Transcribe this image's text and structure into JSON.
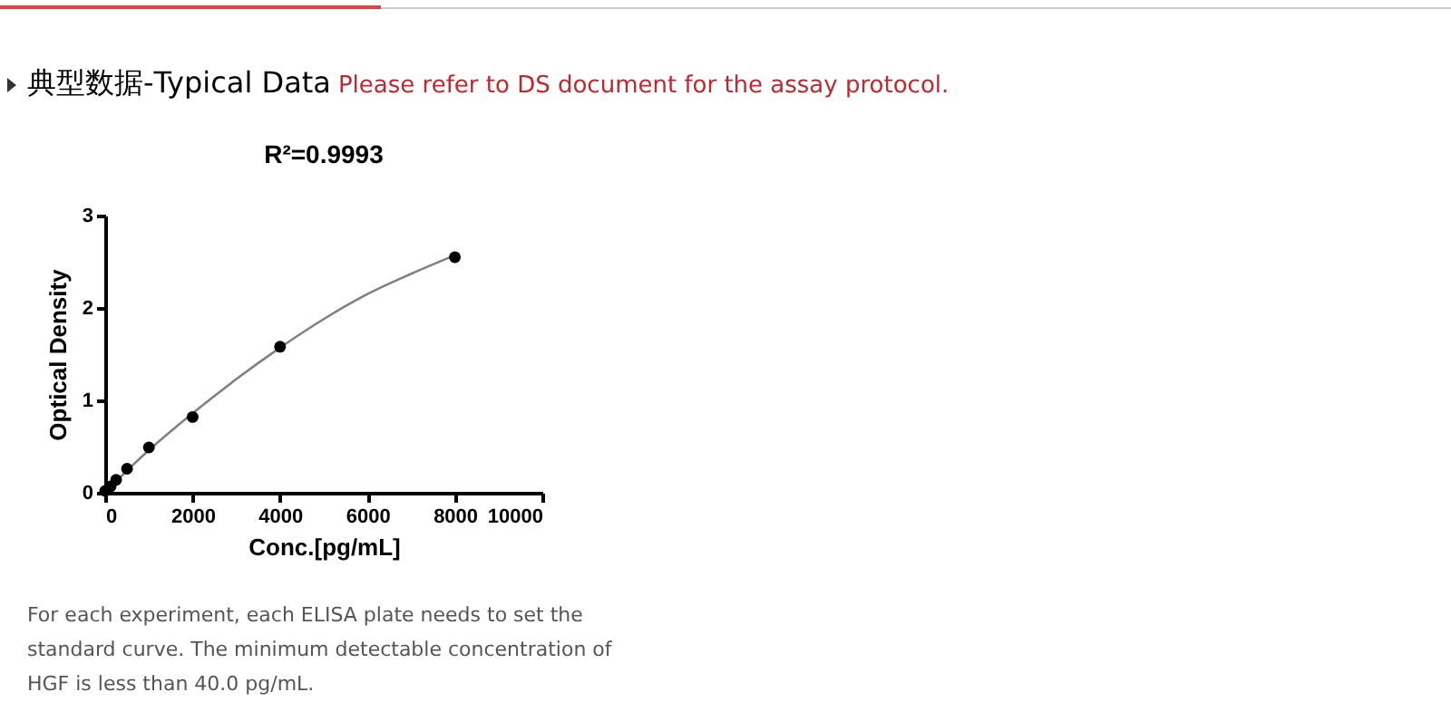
{
  "chart_data": {
    "type": "scatter",
    "title": "典型数据-Typical Data",
    "subtitle": "Please refer to DS document for the assay protocol.",
    "xlabel": "Conc.[pg/mL]",
    "ylabel": "Optical Density",
    "annotations": [
      "R²=0.9993",
      "For each experiment, each ELISA plate needs to set the standard curve. The minimum detectable concentration of HGF is less than 40.0 pg/mL."
    ],
    "series": [
      {
        "type": "line",
        "color": "#808080",
        "marker": "none",
        "x": [
          0,
          500,
          1000,
          2000,
          3000,
          4000,
          5000,
          6000,
          7000,
          8000
        ],
        "values": [
          0.0,
          0.24,
          0.46,
          0.86,
          1.23,
          1.57,
          1.88,
          2.15,
          2.37,
          2.57
        ]
      },
      {
        "color": "#000000",
        "marker": "circle",
        "x": [
          0,
          125,
          250,
          500,
          1000,
          2000,
          4000,
          8000
        ],
        "values": [
          0.02,
          0.07,
          0.14,
          0.26,
          0.49,
          0.82,
          1.58,
          2.55
        ]
      }
    ],
    "xlim": [
      0,
      10000
    ],
    "xticks": [
      0,
      2000,
      4000,
      6000,
      8000,
      10000
    ],
    "ylim": [
      0,
      3
    ],
    "yticks": [
      0,
      1,
      2,
      3
    ],
    "grid": false
  }
}
